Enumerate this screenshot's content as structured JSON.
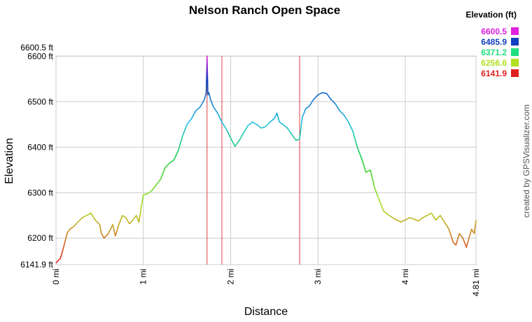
{
  "chart_data": {
    "type": "line",
    "title": "Nelson Ranch Open Space",
    "xlabel": "Distance",
    "ylabel": "Elevation",
    "credit": "created by GPSVisualizer.com",
    "xlim": [
      0,
      4.81
    ],
    "ylim": [
      6141.9,
      6600.5
    ],
    "x_ticks": [
      {
        "value": 0,
        "label": "0 mi"
      },
      {
        "value": 1,
        "label": "1 mi"
      },
      {
        "value": 2,
        "label": "2 mi"
      },
      {
        "value": 3,
        "label": "3 mi"
      },
      {
        "value": 4,
        "label": "4 mi"
      },
      {
        "value": 4.81,
        "label": "4.81 mi"
      }
    ],
    "y_ticks": [
      {
        "value": 6600.5,
        "label": "6600.5 ft"
      },
      {
        "value": 6600,
        "label": "6600 ft"
      },
      {
        "value": 6500,
        "label": "6500 ft"
      },
      {
        "value": 6400,
        "label": "6400 ft"
      },
      {
        "value": 6300,
        "label": "6300 ft"
      },
      {
        "value": 6200,
        "label": "6200 ft"
      },
      {
        "value": 6141.9,
        "label": "6141.9 ft"
      }
    ],
    "grid": true,
    "legend": {
      "title": "Elevation (ft)",
      "placement": "top-right",
      "entries": [
        {
          "label": "6600.5",
          "color": "#e020e0"
        },
        {
          "label": "6485.9",
          "color": "#1040c0"
        },
        {
          "label": "6371.2",
          "color": "#20e080"
        },
        {
          "label": "6256.6",
          "color": "#b0e020"
        },
        {
          "label": "6141.9",
          "color": "#e02020"
        }
      ]
    },
    "markers_x": [
      1.73,
      1.9,
      2.79
    ],
    "marker_color": "#e04040",
    "series": [
      {
        "x": [
          0,
          0.02,
          0.05,
          0.08,
          0.1,
          0.13,
          0.16,
          0.2,
          0.25,
          0.3,
          0.35,
          0.4,
          0.45,
          0.5,
          0.52,
          0.55,
          0.6,
          0.65,
          0.68,
          0.72,
          0.76,
          0.8,
          0.84,
          0.88,
          0.92,
          0.95,
          0.97,
          1.0,
          1.05,
          1.1,
          1.15,
          1.2,
          1.25,
          1.3,
          1.35,
          1.4,
          1.45,
          1.5,
          1.55,
          1.6,
          1.65,
          1.7,
          1.72,
          1.73,
          1.74,
          1.75,
          1.77,
          1.8,
          1.85,
          1.9,
          1.95,
          2.0,
          2.05,
          2.1,
          2.15,
          2.2,
          2.25,
          2.3,
          2.35,
          2.4,
          2.45,
          2.5,
          2.53,
          2.56,
          2.6,
          2.65,
          2.7,
          2.75,
          2.79,
          2.82,
          2.86,
          2.9,
          2.95,
          3.0,
          3.05,
          3.1,
          3.15,
          3.2,
          3.25,
          3.3,
          3.35,
          3.4,
          3.45,
          3.5,
          3.55,
          3.6,
          3.65,
          3.7,
          3.75,
          3.8,
          3.85,
          3.9,
          3.95,
          4.0,
          4.05,
          4.1,
          4.15,
          4.2,
          4.25,
          4.3,
          4.35,
          4.4,
          4.45,
          4.5,
          4.55,
          4.58,
          4.62,
          4.66,
          4.7,
          4.73,
          4.76,
          4.79,
          4.81
        ],
        "y": [
          6145,
          6150,
          6155,
          6175,
          6190,
          6212,
          6220,
          6225,
          6235,
          6245,
          6250,
          6255,
          6240,
          6230,
          6210,
          6200,
          6210,
          6230,
          6205,
          6230,
          6250,
          6245,
          6232,
          6240,
          6250,
          6235,
          6260,
          6295,
          6298,
          6305,
          6318,
          6330,
          6355,
          6365,
          6372,
          6392,
          6425,
          6450,
          6462,
          6480,
          6488,
          6505,
          6520,
          6600.5,
          6515,
          6520,
          6505,
          6490,
          6475,
          6455,
          6440,
          6420,
          6402,
          6415,
          6432,
          6448,
          6455,
          6450,
          6442,
          6445,
          6455,
          6463,
          6475,
          6455,
          6450,
          6442,
          6428,
          6415,
          6418,
          6465,
          6485,
          6490,
          6505,
          6515,
          6520,
          6518,
          6505,
          6495,
          6480,
          6470,
          6455,
          6435,
          6400,
          6375,
          6345,
          6350,
          6310,
          6285,
          6260,
          6252,
          6246,
          6240,
          6236,
          6240,
          6245,
          6242,
          6238,
          6245,
          6250,
          6255,
          6240,
          6250,
          6235,
          6220,
          6190,
          6185,
          6210,
          6200,
          6180,
          6200,
          6220,
          6210,
          6240
        ]
      }
    ]
  }
}
